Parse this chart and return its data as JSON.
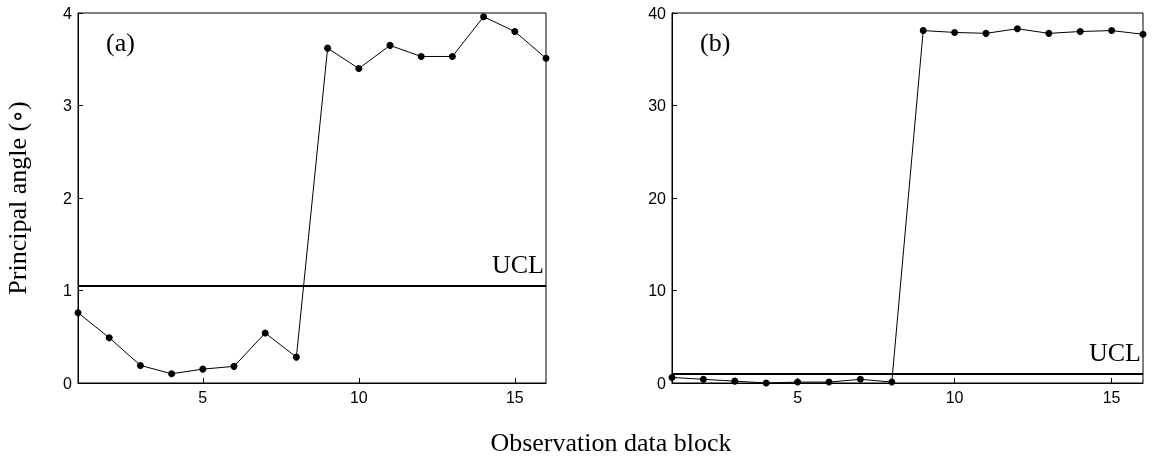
{
  "chart_data": [
    {
      "type": "line",
      "ylabel": "Principal angle (∘)",
      "xlabel": "Observation data block",
      "annotations": [
        "(a)"
      ],
      "x": [
        1,
        2,
        3,
        4,
        5,
        6,
        7,
        8,
        9,
        10,
        11,
        12,
        13,
        14,
        15,
        16
      ],
      "series": [
        {
          "color": "#000000",
          "values": [
            0.76,
            0.49,
            0.19,
            0.1,
            0.15,
            0.18,
            0.54,
            0.28,
            3.62,
            3.4,
            3.65,
            3.53,
            3.53,
            3.96,
            3.8,
            3.51
          ]
        }
      ],
      "xlim": [
        1,
        16
      ],
      "xticks": [
        5,
        10,
        15
      ],
      "ylim": [
        0,
        4
      ],
      "yticks": [
        0,
        1,
        2,
        3,
        4
      ],
      "marker": "circle",
      "grid": false,
      "ref_lines": [
        {
          "axis": "y",
          "value": 1.05,
          "label": "UCL",
          "color": "#000000"
        }
      ]
    },
    {
      "type": "line",
      "annotations": [
        "(b)"
      ],
      "x": [
        1,
        2,
        3,
        4,
        5,
        6,
        7,
        8,
        9,
        10,
        11,
        12,
        13,
        14,
        15,
        16
      ],
      "series": [
        {
          "color": "#000000",
          "values": [
            0.6,
            0.4,
            0.2,
            0.0,
            0.1,
            0.1,
            0.4,
            0.1,
            38.1,
            37.9,
            37.8,
            38.3,
            37.8,
            38.0,
            38.1,
            37.7
          ]
        }
      ],
      "xlim": [
        1,
        16
      ],
      "xticks": [
        5,
        10,
        15
      ],
      "ylim": [
        0,
        40
      ],
      "yticks": [
        0,
        10,
        20,
        30,
        40
      ],
      "marker": "circle",
      "grid": false,
      "ref_lines": [
        {
          "axis": "y",
          "value": 1.0,
          "label": "UCL",
          "color": "#000000"
        }
      ]
    }
  ]
}
